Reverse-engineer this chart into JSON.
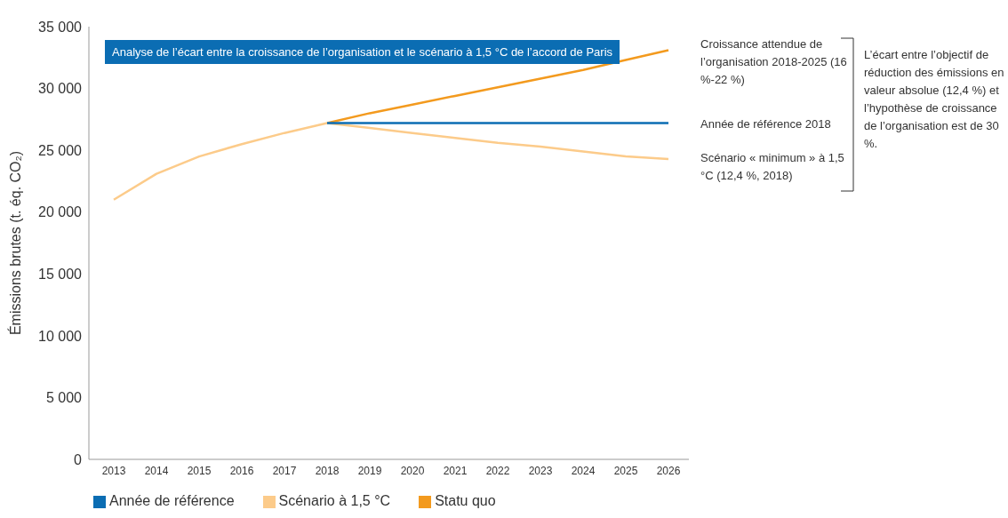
{
  "chart_data": {
    "type": "line",
    "title": "Analyse de l’écart entre la croissance de l’organisation et le scénario à 1,5 °C de l’accord de Paris",
    "ylabel": "Émissions brutes (t. éq. CO₂)",
    "categories": [
      "2013",
      "2014",
      "2015",
      "2016",
      "2017",
      "2018",
      "2019",
      "2020",
      "2021",
      "2022",
      "2023",
      "2024",
      "2025",
      "2026"
    ],
    "series": [
      {
        "name": "Statu quo",
        "color": "#f39a1e",
        "values": [
          null,
          null,
          null,
          null,
          null,
          27200,
          28000,
          28700,
          29400,
          30100,
          30800,
          31500,
          32300,
          33100
        ]
      },
      {
        "name": "Scénario à 1,5 °C",
        "color": "#fccb8a",
        "values": [
          21000,
          23100,
          24500,
          25500,
          26400,
          27200,
          26800,
          26400,
          26000,
          25600,
          25300,
          24900,
          24500,
          24300
        ]
      },
      {
        "name": "Année de référence",
        "color": "#0b6db3",
        "values": [
          null,
          null,
          null,
          null,
          null,
          27200,
          27200,
          27200,
          27200,
          27200,
          27200,
          27200,
          27200,
          27200
        ]
      }
    ],
    "ylim": [
      0,
      35000
    ],
    "yticks": [
      0,
      {
        "value": 5000,
        "label": "5 000"
      },
      {
        "value": 10000,
        "label": "10 000"
      },
      {
        "value": 15000,
        "label": "15 000"
      },
      {
        "value": 20000,
        "label": "20 000"
      },
      {
        "value": 25000,
        "label": "25 000"
      },
      {
        "value": 30000,
        "label": "30 000"
      },
      {
        "value": 35000,
        "label": "35 000"
      }
    ],
    "grid": false,
    "legend": "bottom",
    "marker": "none",
    "line_style": "solid",
    "annotations": [
      "Croissance attendue de l’organisation 2018-2025 (16 %-22 %)",
      "Année de référence 2018",
      "Scénario « minimum » à 1,5 °C (12,4 %, 2018)",
      "L’écart entre l’objectif de réduction des émissions en valeur absolue (12,4 %) et l’hypothèse de croissance de l’organisation est de 30 %."
    ]
  }
}
